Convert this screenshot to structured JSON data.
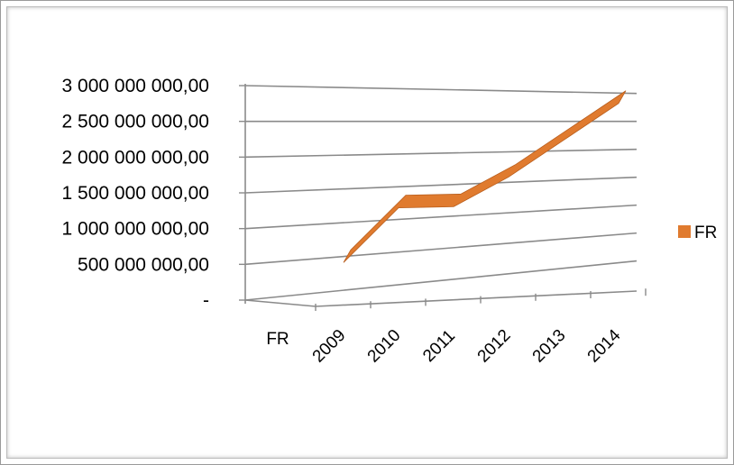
{
  "chart_data": {
    "type": "line",
    "view": "3d",
    "categories": [
      "FR",
      "2009",
      "2010",
      "2011",
      "2012",
      "2013",
      "2014"
    ],
    "series": [
      {
        "name": "FR",
        "color": "#e07b2f",
        "values": [
          null,
          750000000,
          1500000000,
          1500000000,
          1900000000,
          2400000000,
          2900000000
        ]
      }
    ],
    "y_ticks": [
      "-",
      "500 000 000,00",
      "1 000 000 000,00",
      "1 500 000 000,00",
      "2 000 000 000,00",
      "2 500 000 000,00",
      "3 000 000 000,00"
    ],
    "ylim": [
      0,
      3000000000
    ],
    "grid": true,
    "legend": {
      "position": "right",
      "label": "FR"
    },
    "title": "",
    "xlabel": "",
    "ylabel": ""
  }
}
